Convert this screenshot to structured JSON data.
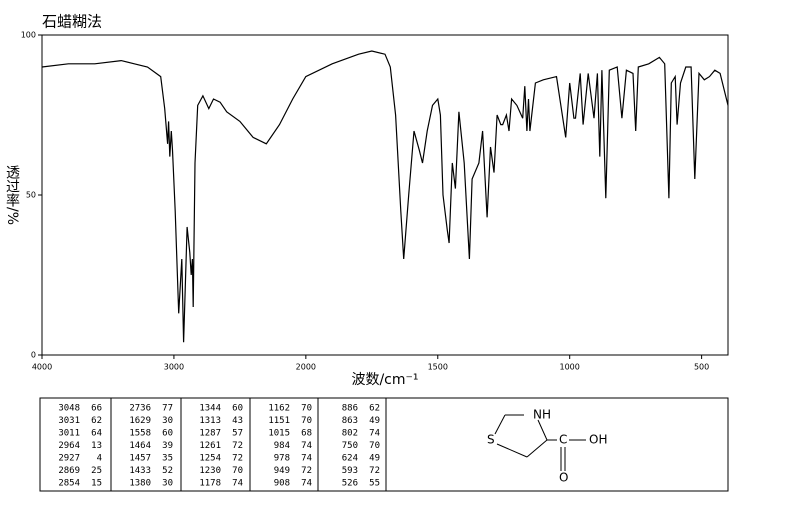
{
  "chart_data": {
    "type": "line",
    "title": "石蜡糊法",
    "x_label": "波数/cm⁻¹",
    "y_label": "透过率/%",
    "xlim": [
      4000,
      400
    ],
    "x_break": 2000,
    "xticks": [
      4000,
      3000,
      2000,
      1500,
      1000,
      500
    ],
    "ylim": [
      0,
      100
    ],
    "yticks": [
      0,
      50,
      100
    ],
    "color": "#000000",
    "x": [
      4000,
      3800,
      3600,
      3400,
      3300,
      3200,
      3100,
      3070,
      3048,
      3040,
      3031,
      3020,
      3011,
      2990,
      2964,
      2940,
      2927,
      2900,
      2880,
      2869,
      2860,
      2854,
      2840,
      2820,
      2780,
      2736,
      2700,
      2650,
      2600,
      2500,
      2400,
      2300,
      2200,
      2100,
      2000,
      1900,
      1800,
      1750,
      1700,
      1680,
      1660,
      1640,
      1629,
      1610,
      1590,
      1570,
      1558,
      1540,
      1520,
      1500,
      1490,
      1480,
      1464,
      1457,
      1445,
      1433,
      1420,
      1400,
      1380,
      1370,
      1344,
      1330,
      1313,
      1300,
      1287,
      1275,
      1261,
      1254,
      1240,
      1230,
      1220,
      1200,
      1178,
      1170,
      1162,
      1156,
      1151,
      1130,
      1100,
      1050,
      1015,
      1000,
      984,
      978,
      960,
      949,
      930,
      908,
      895,
      886,
      878,
      863,
      850,
      820,
      802,
      785,
      760,
      750,
      740,
      700,
      660,
      640,
      624,
      615,
      600,
      593,
      580,
      560,
      540,
      526,
      510,
      490,
      470,
      450,
      430,
      400
    ],
    "values": [
      90,
      91,
      91,
      92,
      91,
      90,
      87,
      77,
      66,
      73,
      62,
      70,
      64,
      45,
      13,
      30,
      4,
      40,
      32,
      25,
      30,
      15,
      60,
      78,
      81,
      77,
      80,
      79,
      76,
      73,
      68,
      66,
      72,
      80,
      87,
      91,
      94,
      95,
      94,
      90,
      75,
      45,
      30,
      50,
      70,
      64,
      60,
      70,
      78,
      80,
      75,
      50,
      39,
      35,
      60,
      52,
      76,
      60,
      30,
      55,
      60,
      70,
      43,
      65,
      57,
      75,
      72,
      72,
      75,
      70,
      80,
      78,
      74,
      84,
      70,
      80,
      70,
      85,
      86,
      87,
      68,
      85,
      74,
      74,
      88,
      72,
      88,
      74,
      88,
      62,
      89,
      49,
      89,
      90,
      74,
      89,
      88,
      70,
      90,
      91,
      93,
      91,
      49,
      85,
      87,
      72,
      85,
      90,
      90,
      55,
      88,
      86,
      87,
      89,
      88,
      78
    ]
  },
  "peak_table": [
    [
      [
        3048,
        66
      ],
      [
        3031,
        62
      ],
      [
        3011,
        64
      ],
      [
        2964,
        13
      ],
      [
        2927,
        4
      ],
      [
        2869,
        25
      ],
      [
        2854,
        15
      ]
    ],
    [
      [
        2736,
        77
      ],
      [
        1629,
        30
      ],
      [
        1558,
        60
      ],
      [
        1464,
        39
      ],
      [
        1457,
        35
      ],
      [
        1433,
        52
      ],
      [
        1380,
        30
      ]
    ],
    [
      [
        1344,
        60
      ],
      [
        1313,
        43
      ],
      [
        1287,
        57
      ],
      [
        1261,
        72
      ],
      [
        1254,
        72
      ],
      [
        1230,
        70
      ],
      [
        1178,
        74
      ]
    ],
    [
      [
        1162,
        70
      ],
      [
        1151,
        70
      ],
      [
        1015,
        68
      ],
      [
        984,
        74
      ],
      [
        978,
        74
      ],
      [
        949,
        72
      ],
      [
        908,
        74
      ]
    ],
    [
      [
        886,
        62
      ],
      [
        863,
        49
      ],
      [
        802,
        74
      ],
      [
        750,
        70
      ],
      [
        624,
        49
      ],
      [
        593,
        72
      ],
      [
        526,
        55
      ]
    ]
  ],
  "structure": {
    "atoms": [
      "NH",
      "S",
      "C",
      "OH",
      "O"
    ]
  }
}
